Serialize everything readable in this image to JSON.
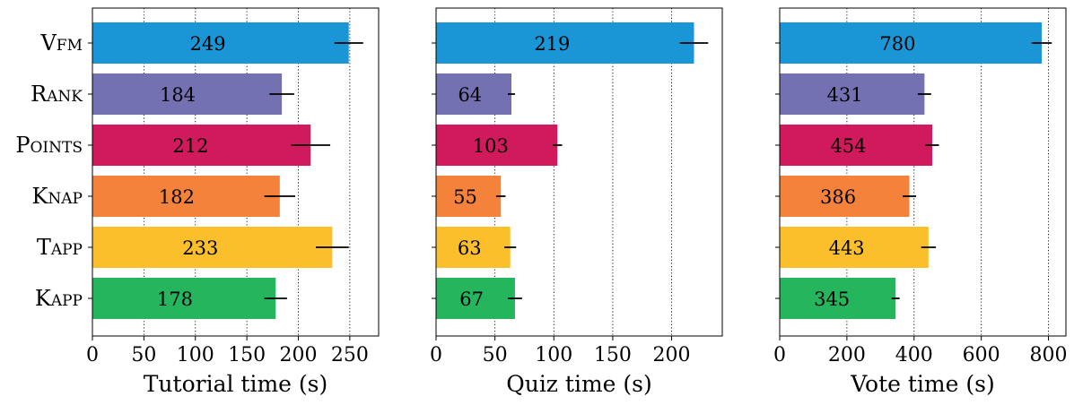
{
  "colors": [
    "#1a96d6",
    "#7471b3",
    "#d1195d",
    "#f4823a",
    "#fbbf2c",
    "#25b55c"
  ],
  "chart_data": [
    {
      "type": "bar",
      "orientation": "horizontal",
      "categories": [
        "Vfm",
        "Rank",
        "Points",
        "Knap",
        "Tapp",
        "Kapp"
      ],
      "values": [
        249,
        184,
        212,
        182,
        233,
        178
      ],
      "errors": [
        14,
        12,
        19,
        15,
        16,
        11
      ],
      "value_labels": [
        "249",
        "184",
        "212",
        "182",
        "233",
        "178"
      ],
      "xlabel": "Tutorial time (s)",
      "xlim": [
        0,
        278
      ],
      "xticks": [
        0,
        50,
        100,
        150,
        200,
        250
      ],
      "xtick_labels": [
        "0",
        "50",
        "100",
        "150",
        "200",
        "250"
      ],
      "grid": "vertical dotted"
    },
    {
      "type": "bar",
      "orientation": "horizontal",
      "categories": [
        "Vfm",
        "Rank",
        "Points",
        "Knap",
        "Tapp",
        "Kapp"
      ],
      "values": [
        219,
        64,
        103,
        55,
        63,
        67
      ],
      "errors": [
        12,
        3,
        4,
        4,
        5,
        6
      ],
      "value_labels": [
        "219",
        "64",
        "103",
        "55",
        "63",
        "67"
      ],
      "xlabel": "Quiz time (s)",
      "xlim": [
        0,
        243
      ],
      "xticks": [
        0,
        50,
        100,
        150,
        200
      ],
      "xtick_labels": [
        "0",
        "50",
        "100",
        "150",
        "200"
      ],
      "grid": "vertical dotted"
    },
    {
      "type": "bar",
      "orientation": "horizontal",
      "categories": [
        "Vfm",
        "Rank",
        "Points",
        "Knap",
        "Tapp",
        "Kapp"
      ],
      "values": [
        780,
        431,
        454,
        386,
        443,
        345
      ],
      "errors": [
        30,
        20,
        20,
        20,
        22,
        12
      ],
      "value_labels": [
        "780",
        "431",
        "454",
        "386",
        "443",
        "345"
      ],
      "xlabel": "Vote time (s)",
      "xlim": [
        0,
        852
      ],
      "xticks": [
        0,
        200,
        400,
        600,
        800
      ],
      "xtick_labels": [
        "0",
        "200",
        "400",
        "600",
        "800"
      ],
      "grid": "vertical dotted"
    }
  ]
}
